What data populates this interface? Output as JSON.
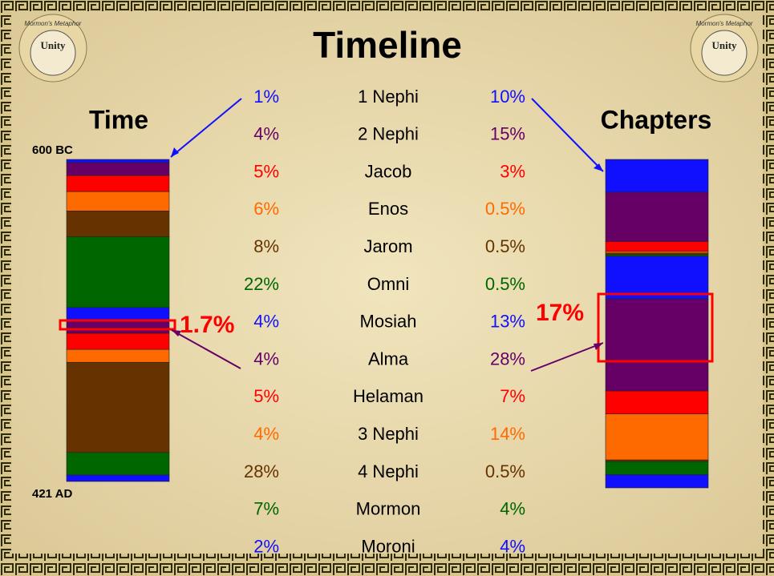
{
  "title": "Timeline",
  "logo": {
    "top": "Mormon's Metaphor",
    "center": "Unity"
  },
  "left_heading": "Time",
  "right_heading": "Chapters",
  "time_start": "600 BC",
  "time_end": "421 AD",
  "annotations": {
    "time_highlight": "1.7%",
    "chapters_highlight": "17%"
  },
  "rows": [
    {
      "book": "1 Nephi",
      "color": "#1010ff",
      "time": {
        "value": 1,
        "label": "1%"
      },
      "chapters": {
        "value": 10,
        "label": "10%"
      }
    },
    {
      "book": "2 Nephi",
      "color": "#660066",
      "time": {
        "value": 4,
        "label": "4%"
      },
      "chapters": {
        "value": 15,
        "label": "15%"
      }
    },
    {
      "book": "Jacob",
      "color": "#ff0000",
      "time": {
        "value": 5,
        "label": "5%"
      },
      "chapters": {
        "value": 3,
        "label": "3%"
      }
    },
    {
      "book": "Enos",
      "color": "#ff6a00",
      "time": {
        "value": 6,
        "label": "6%"
      },
      "chapters": {
        "value": 0.5,
        "label": "0.5%"
      }
    },
    {
      "book": "Jarom",
      "color": "#663300",
      "time": {
        "value": 8,
        "label": "8%"
      },
      "chapters": {
        "value": 0.5,
        "label": "0.5%"
      }
    },
    {
      "book": "Omni",
      "color": "#006600",
      "time": {
        "value": 22,
        "label": "22%"
      },
      "chapters": {
        "value": 0.5,
        "label": "0.5%"
      }
    },
    {
      "book": "Mosiah",
      "color": "#1010ff",
      "time": {
        "value": 4,
        "label": "4%"
      },
      "chapters": {
        "value": 13,
        "label": "13%"
      }
    },
    {
      "book": "Alma",
      "color": "#660066",
      "time": {
        "value": 4,
        "label": "4%"
      },
      "chapters": {
        "value": 28,
        "label": "28%"
      }
    },
    {
      "book": "Helaman",
      "color": "#ff0000",
      "time": {
        "value": 5,
        "label": "5%"
      },
      "chapters": {
        "value": 7,
        "label": "7%"
      }
    },
    {
      "book": "3 Nephi",
      "color": "#ff6a00",
      "time": {
        "value": 4,
        "label": "4%"
      },
      "chapters": {
        "value": 14,
        "label": "14%"
      }
    },
    {
      "book": "4 Nephi",
      "color": "#663300",
      "time": {
        "value": 28,
        "label": "28%"
      },
      "chapters": {
        "value": 0.5,
        "label": "0.5%"
      }
    },
    {
      "book": "Mormon",
      "color": "#006600",
      "time": {
        "value": 7,
        "label": "7%"
      },
      "chapters": {
        "value": 4,
        "label": "4%"
      }
    },
    {
      "book": "Moroni",
      "color": "#1010ff",
      "time": {
        "value": 2,
        "label": "2%"
      },
      "chapters": {
        "value": 4,
        "label": "4%"
      }
    }
  ]
}
